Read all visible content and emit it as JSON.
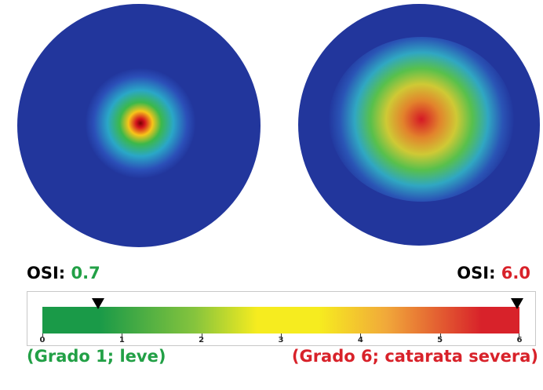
{
  "left_reading": {
    "label": "OSI:",
    "value": "0.7",
    "value_color": "#22a046",
    "grade": "(Grado 1; leve)",
    "grade_color": "#22a046"
  },
  "right_reading": {
    "label": "OSI:",
    "value": "6.0",
    "value_color": "#d8222a",
    "grade": "(Grado 6; catarata severa)",
    "grade_color": "#d8222a"
  },
  "scale": {
    "ticks": [
      "0",
      "1",
      "2",
      "3",
      "4",
      "5",
      "6"
    ],
    "min": 0,
    "max": 6,
    "markers": [
      0.7,
      6.0
    ],
    "colors": [
      "#1a9a48",
      "#86c43d",
      "#f6ec1f",
      "#f1a93a",
      "#d8222a"
    ]
  }
}
